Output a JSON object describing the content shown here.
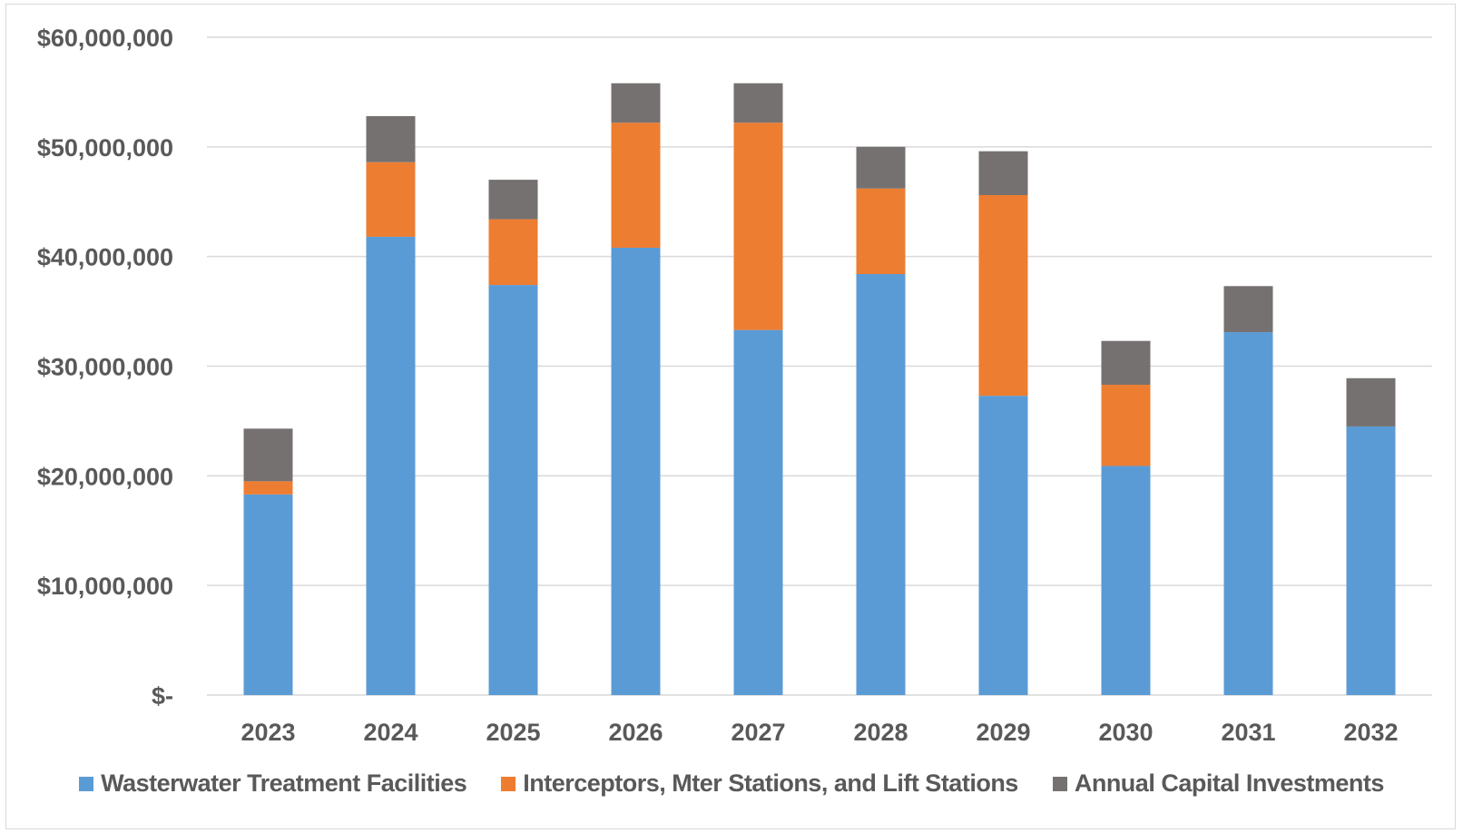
{
  "chart_data": {
    "type": "bar",
    "stacked": true,
    "categories": [
      "2023",
      "2024",
      "2025",
      "2026",
      "2027",
      "2028",
      "2029",
      "2030",
      "2031",
      "2032"
    ],
    "series": [
      {
        "name": "Wasterwater Treatment Facilities",
        "color": "#5b9bd5",
        "values": [
          18300000,
          41800000,
          37400000,
          40800000,
          33300000,
          38400000,
          27300000,
          20900000,
          33100000,
          24500000
        ]
      },
      {
        "name": "Interceptors, Mter Stations, and Lift Stations",
        "color": "#ed7d31",
        "values": [
          1200000,
          6800000,
          6000000,
          11400000,
          18900000,
          7800000,
          18300000,
          7400000,
          0,
          0
        ]
      },
      {
        "name": "Annual Capital Investments",
        "color": "#767171",
        "values": [
          4800000,
          4200000,
          3600000,
          3600000,
          3600000,
          3800000,
          4000000,
          4000000,
          4200000,
          4400000
        ]
      }
    ],
    "ylim": [
      0,
      60000000
    ],
    "yticks": [
      0,
      10000000,
      20000000,
      30000000,
      40000000,
      50000000,
      60000000
    ],
    "ytick_labels": [
      "$-",
      "$10,000,000",
      "$20,000,000",
      "$30,000,000",
      "$40,000,000",
      "$50,000,000",
      "$60,000,000"
    ],
    "grid": true,
    "legend_position": "bottom"
  }
}
